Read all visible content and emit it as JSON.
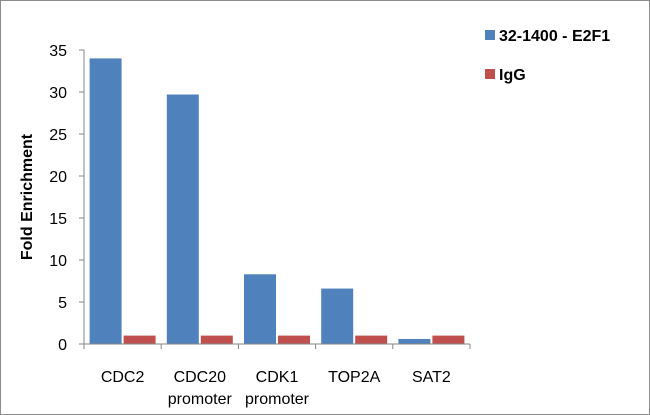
{
  "chart_data": {
    "type": "bar",
    "title": "",
    "xlabel": "",
    "ylabel": "Fold Enrichment",
    "ylim": [
      0,
      35
    ],
    "yticks": [
      "0",
      "5",
      "10",
      "15",
      "20",
      "25",
      "30",
      "35"
    ],
    "grid": false,
    "legend_position": "top-right",
    "categories": [
      [
        "CDC2"
      ],
      [
        "CDC20",
        "promoter"
      ],
      [
        "CDK1",
        "promoter"
      ],
      [
        "TOP2A"
      ],
      [
        "SAT2"
      ]
    ],
    "series": [
      {
        "name": "32-1400 - E2F1",
        "color": "#4f81bd",
        "values": [
          34,
          29.7,
          8.3,
          6.6,
          0.6
        ]
      },
      {
        "name": "IgG",
        "color": "#c0504d",
        "values": [
          1,
          1,
          1,
          1,
          1
        ]
      }
    ]
  }
}
